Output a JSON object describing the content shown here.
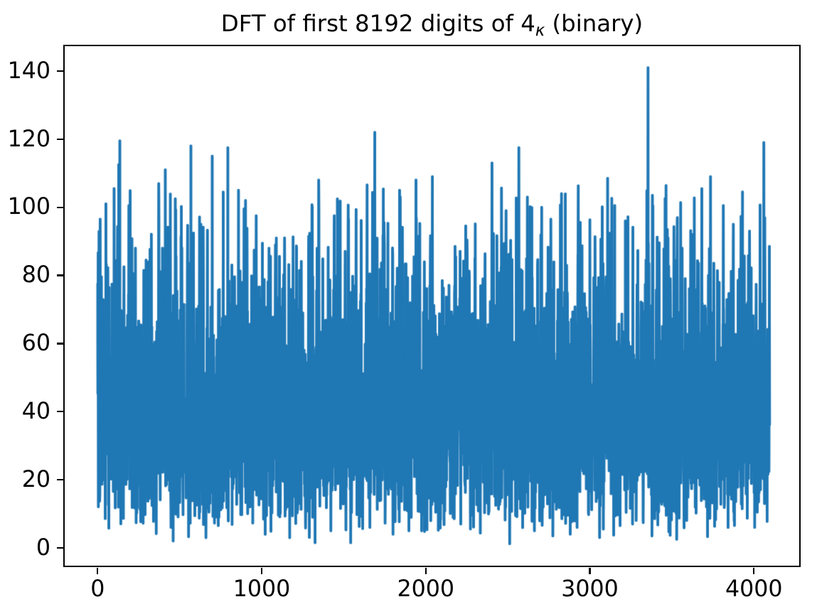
{
  "figure": {
    "background": "#ffffff"
  },
  "chart_data": {
    "type": "line",
    "title": {
      "pre": "DFT of first 8192 digits of 4",
      "sub": "κ",
      "post": " (binary)"
    },
    "xlabel": "",
    "ylabel": "",
    "legend": null,
    "grid": false,
    "line_color": "#1f77b4",
    "n_points": 4096,
    "x_start": 0,
    "xlim": [
      -201,
      4280
    ],
    "ylim": [
      -5.45,
      147.3
    ],
    "xticks": [
      0,
      1000,
      2000,
      3000,
      4000
    ],
    "yticks": [
      0,
      20,
      40,
      60,
      80,
      100,
      120,
      140
    ],
    "noise_model": {
      "distribution": "rayleigh",
      "sigma": 33,
      "seed": 42,
      "correlation": 0.28,
      "min_value": 1.2,
      "soft_max": 107,
      "low_knee": 25,
      "low_factor": 0.9
    },
    "notable_peaks": [
      {
        "x": 15,
        "y": 96.5
      },
      {
        "x": 50,
        "y": 101
      },
      {
        "x": 100,
        "y": 105.5
      },
      {
        "x": 128,
        "y": 112.5
      },
      {
        "x": 135,
        "y": 119.5
      },
      {
        "x": 190,
        "y": 100.5
      },
      {
        "x": 230,
        "y": 88
      },
      {
        "x": 295,
        "y": 84.5
      },
      {
        "x": 395,
        "y": 88
      },
      {
        "x": 412,
        "y": 111
      },
      {
        "x": 473,
        "y": 102.5
      },
      {
        "x": 568,
        "y": 118
      },
      {
        "x": 629,
        "y": 95
      },
      {
        "x": 698,
        "y": 115
      },
      {
        "x": 793,
        "y": 117.5
      },
      {
        "x": 858,
        "y": 105
      },
      {
        "x": 901,
        "y": 102
      },
      {
        "x": 966,
        "y": 97.5
      },
      {
        "x": 1044,
        "y": 88
      },
      {
        "x": 1139,
        "y": 91
      },
      {
        "x": 1191,
        "y": 91.3
      },
      {
        "x": 1304,
        "y": 89.5
      },
      {
        "x": 1347,
        "y": 108
      },
      {
        "x": 1442,
        "y": 97.5
      },
      {
        "x": 1529,
        "y": 96.5
      },
      {
        "x": 1689,
        "y": 122
      },
      {
        "x": 1745,
        "y": 95.5
      },
      {
        "x": 1840,
        "y": 105
      },
      {
        "x": 1940,
        "y": 108
      },
      {
        "x": 2040,
        "y": 109
      },
      {
        "x": 2178,
        "y": 88.5
      },
      {
        "x": 2243,
        "y": 94.5
      },
      {
        "x": 2299,
        "y": 85
      },
      {
        "x": 2403,
        "y": 113
      },
      {
        "x": 2489,
        "y": 99
      },
      {
        "x": 2567,
        "y": 117.5
      },
      {
        "x": 2619,
        "y": 103
      },
      {
        "x": 2706,
        "y": 100
      },
      {
        "x": 2762,
        "y": 96.5
      },
      {
        "x": 2827,
        "y": 104
      },
      {
        "x": 3000,
        "y": 96.3
      },
      {
        "x": 3108,
        "y": 108.5
      },
      {
        "x": 3151,
        "y": 100.5
      },
      {
        "x": 3216,
        "y": 96
      },
      {
        "x": 3354,
        "y": 141
      },
      {
        "x": 3381,
        "y": 103.5
      },
      {
        "x": 3476,
        "y": 91
      },
      {
        "x": 3562,
        "y": 88
      },
      {
        "x": 3627,
        "y": 92
      },
      {
        "x": 3735,
        "y": 109
      },
      {
        "x": 3813,
        "y": 100.5
      },
      {
        "x": 3874,
        "y": 95
      },
      {
        "x": 3930,
        "y": 104.5
      },
      {
        "x": 3973,
        "y": 93
      },
      {
        "x": 4060,
        "y": 119
      },
      {
        "x": 4094,
        "y": 88.5
      }
    ],
    "notable_dips": [
      {
        "x": 447,
        "y": 6
      },
      {
        "x": 460,
        "y": 2
      },
      {
        "x": 660,
        "y": 3
      },
      {
        "x": 1170,
        "y": 3
      },
      {
        "x": 1325,
        "y": 1.5
      },
      {
        "x": 1421,
        "y": 5
      },
      {
        "x": 1542,
        "y": 1.5
      },
      {
        "x": 1659,
        "y": 6
      },
      {
        "x": 1800,
        "y": 4
      },
      {
        "x": 1897,
        "y": 5
      },
      {
        "x": 2213,
        "y": 7
      },
      {
        "x": 2511,
        "y": 1.2
      },
      {
        "x": 2662,
        "y": 5
      },
      {
        "x": 2880,
        "y": 4
      },
      {
        "x": 2922,
        "y": 6
      },
      {
        "x": 3260,
        "y": 7
      },
      {
        "x": 3529,
        "y": 2.5
      },
      {
        "x": 4004,
        "y": 6
      }
    ]
  }
}
